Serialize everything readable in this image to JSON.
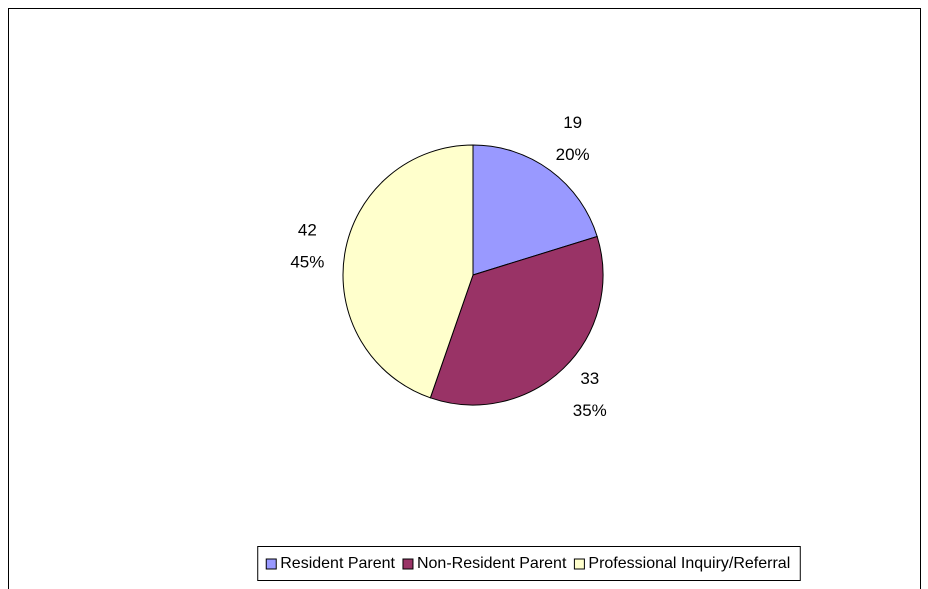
{
  "chart_data": {
    "type": "pie",
    "categories": [
      "Resident Parent",
      "Non-Resident Parent",
      "Professional Inquiry/Referral"
    ],
    "values": [
      19,
      33,
      42
    ],
    "percent_labels": [
      "20%",
      "35%",
      "45%"
    ],
    "colors": [
      "#9999ff",
      "#993366",
      "#ffffcc"
    ],
    "legend": "bottom"
  }
}
